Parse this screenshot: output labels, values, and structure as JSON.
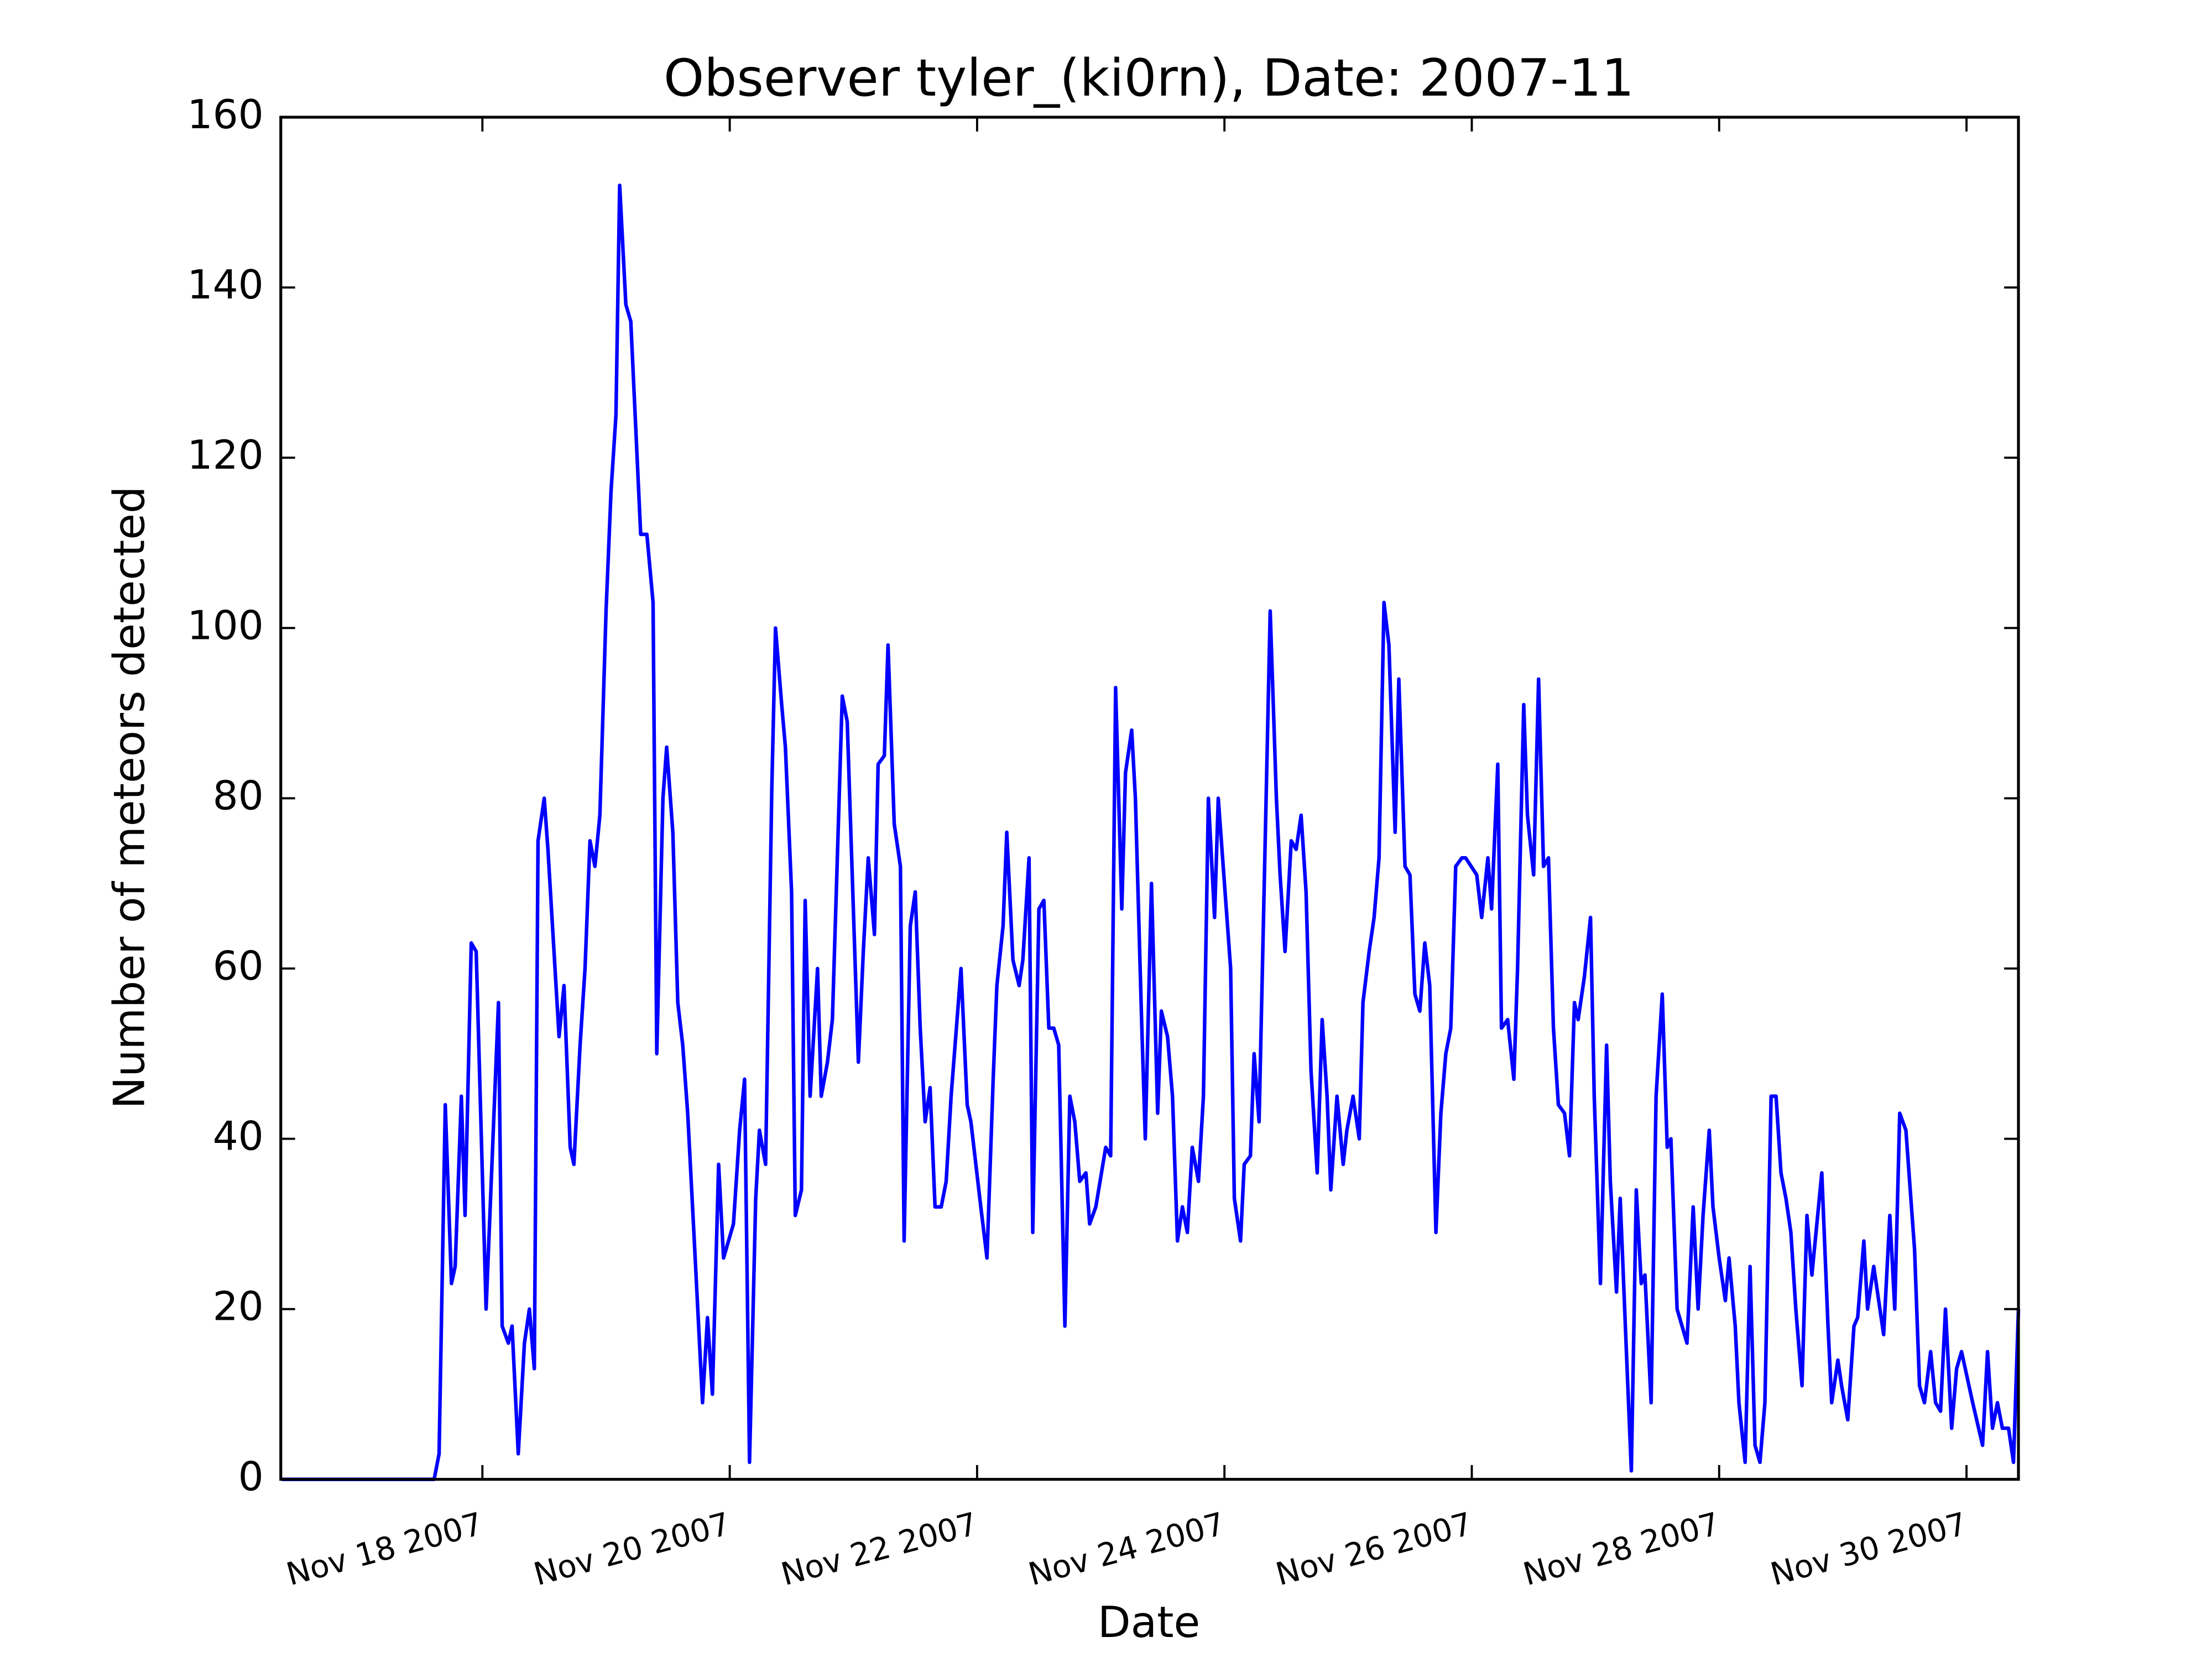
{
  "chart_data": {
    "type": "line",
    "title": "Observer tyler_(ki0rn), Date: 2007-11",
    "x_label": "Date",
    "y_label": "Number of meteors detected",
    "color": "#0000ff",
    "xlim": [
      16.37,
      30.42
    ],
    "xticks": [
      {
        "value": 18,
        "label": "Nov 18 2007"
      },
      {
        "value": 20,
        "label": "Nov 20 2007"
      },
      {
        "value": 22,
        "label": "Nov 22 2007"
      },
      {
        "value": 24,
        "label": "Nov 24 2007"
      },
      {
        "value": 26,
        "label": "Nov 26 2007"
      },
      {
        "value": 28,
        "label": "Nov 28 2007"
      },
      {
        "value": 30,
        "label": "Nov 30 2007"
      }
    ],
    "ylim": [
      0,
      160
    ],
    "yticks": [
      0,
      20,
      40,
      60,
      80,
      100,
      120,
      140,
      160
    ],
    "x": [
      16.38,
      17.61,
      17.65,
      17.7,
      17.75,
      17.78,
      17.83,
      17.86,
      17.91,
      17.95,
      18.03,
      18.13,
      18.16,
      18.21,
      18.24,
      18.29,
      18.34,
      18.38,
      18.42,
      18.45,
      18.5,
      18.53,
      18.62,
      18.66,
      18.71,
      18.74,
      18.79,
      18.83,
      18.87,
      18.91,
      18.95,
      19.0,
      19.04,
      19.08,
      19.11,
      19.16,
      19.2,
      19.28,
      19.33,
      19.38,
      19.41,
      19.46,
      19.49,
      19.54,
      19.58,
      19.62,
      19.66,
      19.71,
      19.78,
      19.82,
      19.86,
      19.91,
      19.95,
      20.03,
      20.08,
      20.12,
      20.16,
      20.21,
      20.24,
      20.29,
      20.34,
      20.37,
      20.42,
      20.45,
      20.5,
      20.53,
      20.58,
      20.61,
      20.65,
      20.71,
      20.74,
      20.79,
      20.83,
      20.91,
      20.95,
      21.04,
      21.08,
      21.12,
      21.17,
      21.2,
      21.25,
      21.28,
      21.33,
      21.38,
      21.41,
      21.46,
      21.5,
      21.54,
      21.58,
      21.62,
      21.66,
      21.71,
      21.75,
      21.79,
      21.87,
      21.92,
      21.95,
      22.03,
      22.08,
      22.13,
      22.16,
      22.21,
      22.24,
      22.29,
      22.34,
      22.37,
      22.42,
      22.45,
      22.5,
      22.54,
      22.58,
      22.62,
      22.66,
      22.71,
      22.75,
      22.79,
      22.83,
      22.88,
      22.91,
      22.96,
      23.04,
      23.08,
      23.12,
      23.17,
      23.2,
      23.25,
      23.28,
      23.33,
      23.36,
      23.41,
      23.46,
      23.49,
      23.54,
      23.58,
      23.62,
      23.66,
      23.7,
      23.74,
      23.79,
      23.83,
      23.87,
      23.92,
      23.95,
      24.0,
      24.05,
      24.08,
      24.13,
      24.16,
      24.21,
      24.24,
      24.28,
      24.37,
      24.42,
      24.45,
      24.49,
      24.54,
      24.58,
      24.62,
      24.66,
      24.7,
      24.75,
      24.79,
      24.83,
      24.86,
      24.91,
      24.96,
      24.99,
      25.04,
      25.09,
      25.12,
      25.17,
      25.21,
      25.25,
      25.29,
      25.33,
      25.38,
      25.41,
      25.46,
      25.5,
      25.54,
      25.58,
      25.62,
      25.66,
      25.71,
      25.75,
      25.79,
      25.83,
      25.87,
      25.92,
      25.95,
      26.04,
      26.08,
      26.13,
      26.16,
      26.21,
      26.24,
      26.29,
      26.34,
      26.37,
      26.42,
      26.45,
      26.5,
      26.54,
      26.58,
      26.62,
      26.66,
      26.7,
      26.75,
      26.79,
      26.83,
      26.86,
      26.91,
      26.96,
      26.99,
      27.04,
      27.09,
      27.12,
      27.17,
      27.2,
      27.25,
      27.29,
      27.33,
      27.37,
      27.4,
      27.45,
      27.49,
      27.54,
      27.58,
      27.61,
      27.66,
      27.74,
      27.79,
      27.83,
      27.87,
      27.92,
      27.95,
      28.0,
      28.05,
      28.08,
      28.13,
      28.16,
      28.21,
      28.25,
      28.29,
      28.33,
      28.37,
      28.42,
      28.46,
      28.5,
      28.54,
      28.58,
      28.62,
      28.67,
      28.71,
      28.75,
      28.79,
      28.83,
      28.88,
      28.91,
      28.96,
      28.99,
      29.04,
      29.09,
      29.12,
      29.17,
      29.2,
      29.25,
      29.29,
      29.33,
      29.38,
      29.42,
      29.46,
      29.51,
      29.54,
      29.58,
      29.62,
      29.66,
      29.71,
      29.75,
      29.79,
      29.83,
      29.88,
      29.92,
      29.96,
      30.05,
      30.13,
      30.17,
      30.21,
      30.25,
      30.29,
      30.34,
      30.38,
      30.42
    ],
    "values": [
      0,
      0,
      3,
      44,
      23,
      25,
      45,
      31,
      63,
      62,
      20,
      56,
      18,
      16,
      18,
      3,
      16,
      20,
      13,
      75,
      80,
      74,
      52,
      58,
      39,
      37,
      51,
      60,
      75,
      72,
      78,
      102,
      116,
      125,
      152,
      138,
      136,
      111,
      111,
      103,
      50,
      80,
      86,
      76,
      56,
      51,
      43,
      29,
      9,
      19,
      10,
      37,
      26,
      30,
      41,
      47,
      2,
      33,
      41,
      37,
      81,
      100,
      91,
      86,
      69,
      31,
      34,
      68,
      45,
      60,
      45,
      49,
      54,
      92,
      89,
      49,
      62,
      73,
      64,
      84,
      85,
      98,
      77,
      72,
      28,
      65,
      69,
      53,
      42,
      46,
      32,
      32,
      35,
      45,
      60,
      44,
      42,
      32,
      26,
      47,
      58,
      65,
      76,
      61,
      58,
      61,
      73,
      29,
      67,
      68,
      53,
      53,
      51,
      18,
      45,
      42,
      35,
      36,
      30,
      32,
      39,
      38,
      93,
      67,
      83,
      88,
      80,
      54,
      40,
      70,
      43,
      55,
      52,
      45,
      28,
      32,
      29,
      39,
      35,
      45,
      80,
      66,
      80,
      70,
      60,
      33,
      28,
      37,
      38,
      50,
      42,
      102,
      80,
      71,
      62,
      75,
      74,
      78,
      69,
      48,
      36,
      54,
      45,
      34,
      45,
      37,
      41,
      45,
      40,
      56,
      62,
      66,
      73,
      103,
      98,
      76,
      94,
      72,
      71,
      57,
      55,
      63,
      58,
      29,
      43,
      50,
      53,
      72,
      73,
      73,
      71,
      66,
      73,
      67,
      84,
      53,
      54,
      47,
      60,
      91,
      78,
      71,
      94,
      72,
      73,
      53,
      44,
      43,
      38,
      56,
      54,
      59,
      66,
      45,
      23,
      51,
      35,
      22,
      33,
      15,
      1,
      34,
      23,
      24,
      9,
      45,
      57,
      39,
      40,
      20,
      16,
      32,
      20,
      31,
      41,
      32,
      26,
      21,
      26,
      18,
      9,
      2,
      25,
      4,
      2,
      9,
      45,
      45,
      36,
      33,
      29,
      20,
      11,
      31,
      24,
      30,
      36,
      18,
      9,
      14,
      11,
      7,
      18,
      19,
      28,
      20,
      25,
      21,
      17,
      31,
      20,
      43,
      41,
      35,
      27,
      11,
      9,
      15,
      9,
      8,
      20,
      6,
      13,
      15,
      9,
      4,
      15,
      6,
      9,
      6,
      6,
      2,
      20
    ]
  }
}
